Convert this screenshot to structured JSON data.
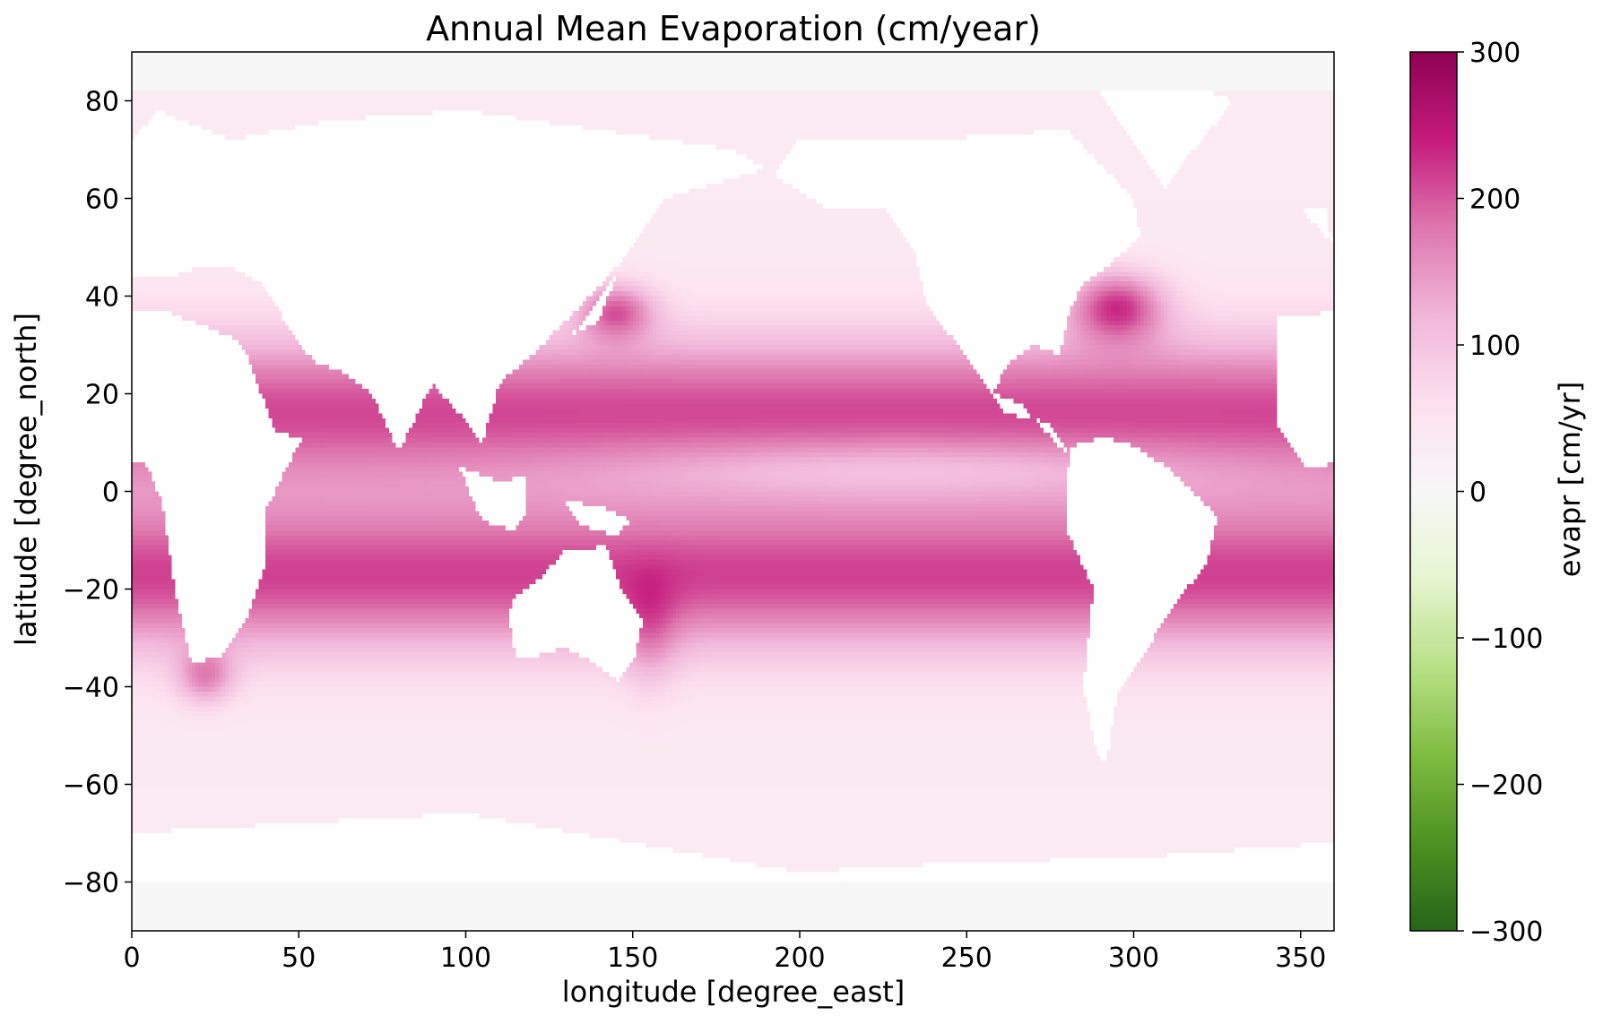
{
  "chart_data": {
    "type": "heatmap",
    "title": "Annual Mean Evaporation (cm/year)",
    "xlabel": "longitude [degree_east]",
    "ylabel": "latitude [degree_north]",
    "xlim": [
      0,
      360
    ],
    "ylim": [
      -90,
      90
    ],
    "xticks": [
      0,
      50,
      100,
      150,
      200,
      250,
      300,
      350
    ],
    "xtick_labels": [
      "0",
      "50",
      "100",
      "150",
      "200",
      "250",
      "300",
      "350"
    ],
    "yticks": [
      80,
      60,
      40,
      20,
      0,
      -20,
      -40,
      -60,
      -80
    ],
    "ytick_labels": [
      "80",
      "60",
      "40",
      "20",
      "0",
      "−20",
      "−40",
      "−60",
      "−80"
    ],
    "colorbar": {
      "label": "evapr [cm/yr]",
      "colormap": "PiYG_r",
      "vmin": -300,
      "vmax": 300,
      "ticks": [
        300,
        200,
        100,
        0,
        -100,
        -200,
        -300
      ],
      "tick_labels": [
        "300",
        "200",
        "100",
        "0",
        "−100",
        "−200",
        "−300"
      ],
      "colors": [
        "#276419",
        "#4d9221",
        "#7fbc41",
        "#b8e186",
        "#e6f5d0",
        "#f7f7f7",
        "#fde0ef",
        "#f1b6da",
        "#de77ae",
        "#c51b7d",
        "#8e0152"
      ]
    },
    "missing_color": "#ffffff",
    "polar_fill_color": "#f7f7f7",
    "grid": false
  }
}
